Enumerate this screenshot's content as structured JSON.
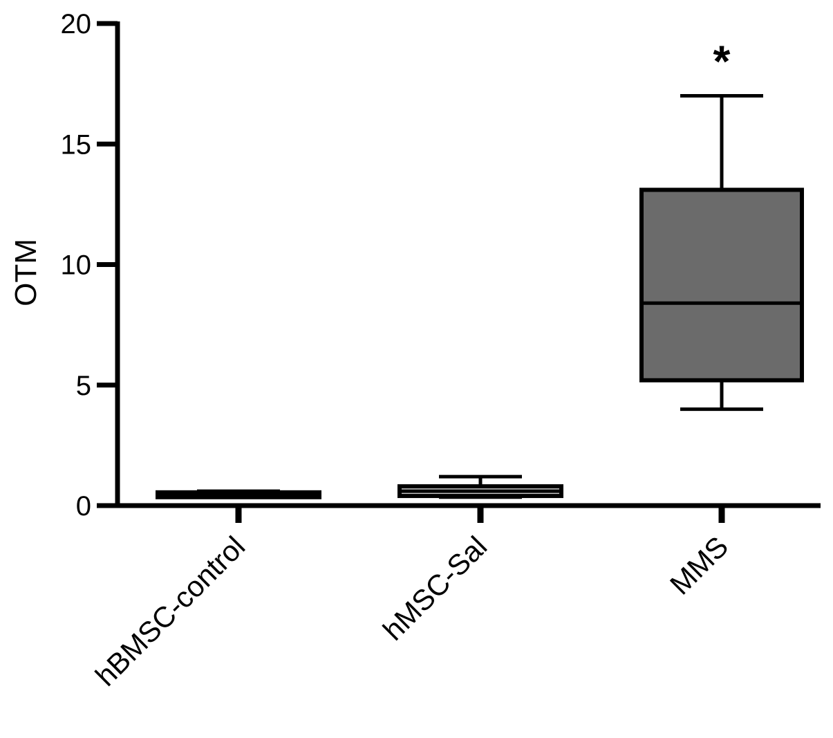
{
  "chart_data": {
    "type": "box",
    "title": "",
    "xlabel": "",
    "ylabel": "OTM",
    "ylim": [
      0,
      20
    ],
    "yticks": [
      0,
      5,
      10,
      15,
      20
    ],
    "yticks_labels": [
      "0",
      "5",
      "10",
      "15",
      "20"
    ],
    "grid": false,
    "legend": "none",
    "categories": [
      "hBMSC-control",
      "hMSC-Sal",
      "MMS"
    ],
    "boxes": [
      {
        "category": "hBMSC-control",
        "min": 0.35,
        "q1": 0.35,
        "median": 0.45,
        "q3": 0.55,
        "max": 0.6,
        "fill": "#6b6b6b",
        "annotation": ""
      },
      {
        "category": "hMSC-Sal",
        "min": 0.35,
        "q1": 0.4,
        "median": 0.6,
        "q3": 0.8,
        "max": 1.2,
        "fill": "#c8c8c8",
        "annotation": ""
      },
      {
        "category": "MMS",
        "min": 4.0,
        "q1": 5.2,
        "median": 8.4,
        "q3": 13.1,
        "max": 17.0,
        "fill": "#6b6b6b",
        "annotation": "*"
      }
    ]
  }
}
